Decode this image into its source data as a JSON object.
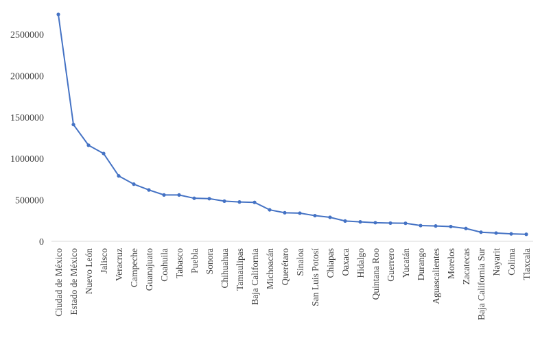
{
  "chart_data": {
    "type": "line",
    "color": "#4472C4",
    "grid": false,
    "legend": "none",
    "ylim": [
      0,
      2500000
    ],
    "yticks": [
      "0",
      "500000",
      "1000000",
      "1500000",
      "2000000",
      "2500000"
    ],
    "categories": [
      "Ciudad de México",
      "Estado de México",
      "Nuevo León",
      "Jalisco",
      "Veracruz",
      "Campeche",
      "Guanajuato",
      "Coahuila",
      "Tabasco",
      "Puebla",
      "Sonora",
      "Chihuahua",
      "Tamaulipas",
      "Baja California",
      "Michoacán",
      "Querétaro",
      "Sinaloa",
      "San Luis Potosí",
      "Chiapas",
      "Oaxaca",
      "Hidalgo",
      "Quintana Roo",
      "Guerrero",
      "Yucatán",
      "Durango",
      "Aguascalientes",
      "Morelos",
      "Zacatecas",
      "Baja California Sur",
      "Nayarit",
      "Colima",
      "Tlaxcala"
    ],
    "values": [
      2740000,
      1410000,
      1160000,
      1060000,
      790000,
      690000,
      620000,
      560000,
      560000,
      520000,
      515000,
      485000,
      475000,
      470000,
      380000,
      345000,
      340000,
      310000,
      290000,
      245000,
      235000,
      225000,
      220000,
      218000,
      190000,
      185000,
      178000,
      155000,
      110000,
      100000,
      90000,
      85000
    ]
  }
}
